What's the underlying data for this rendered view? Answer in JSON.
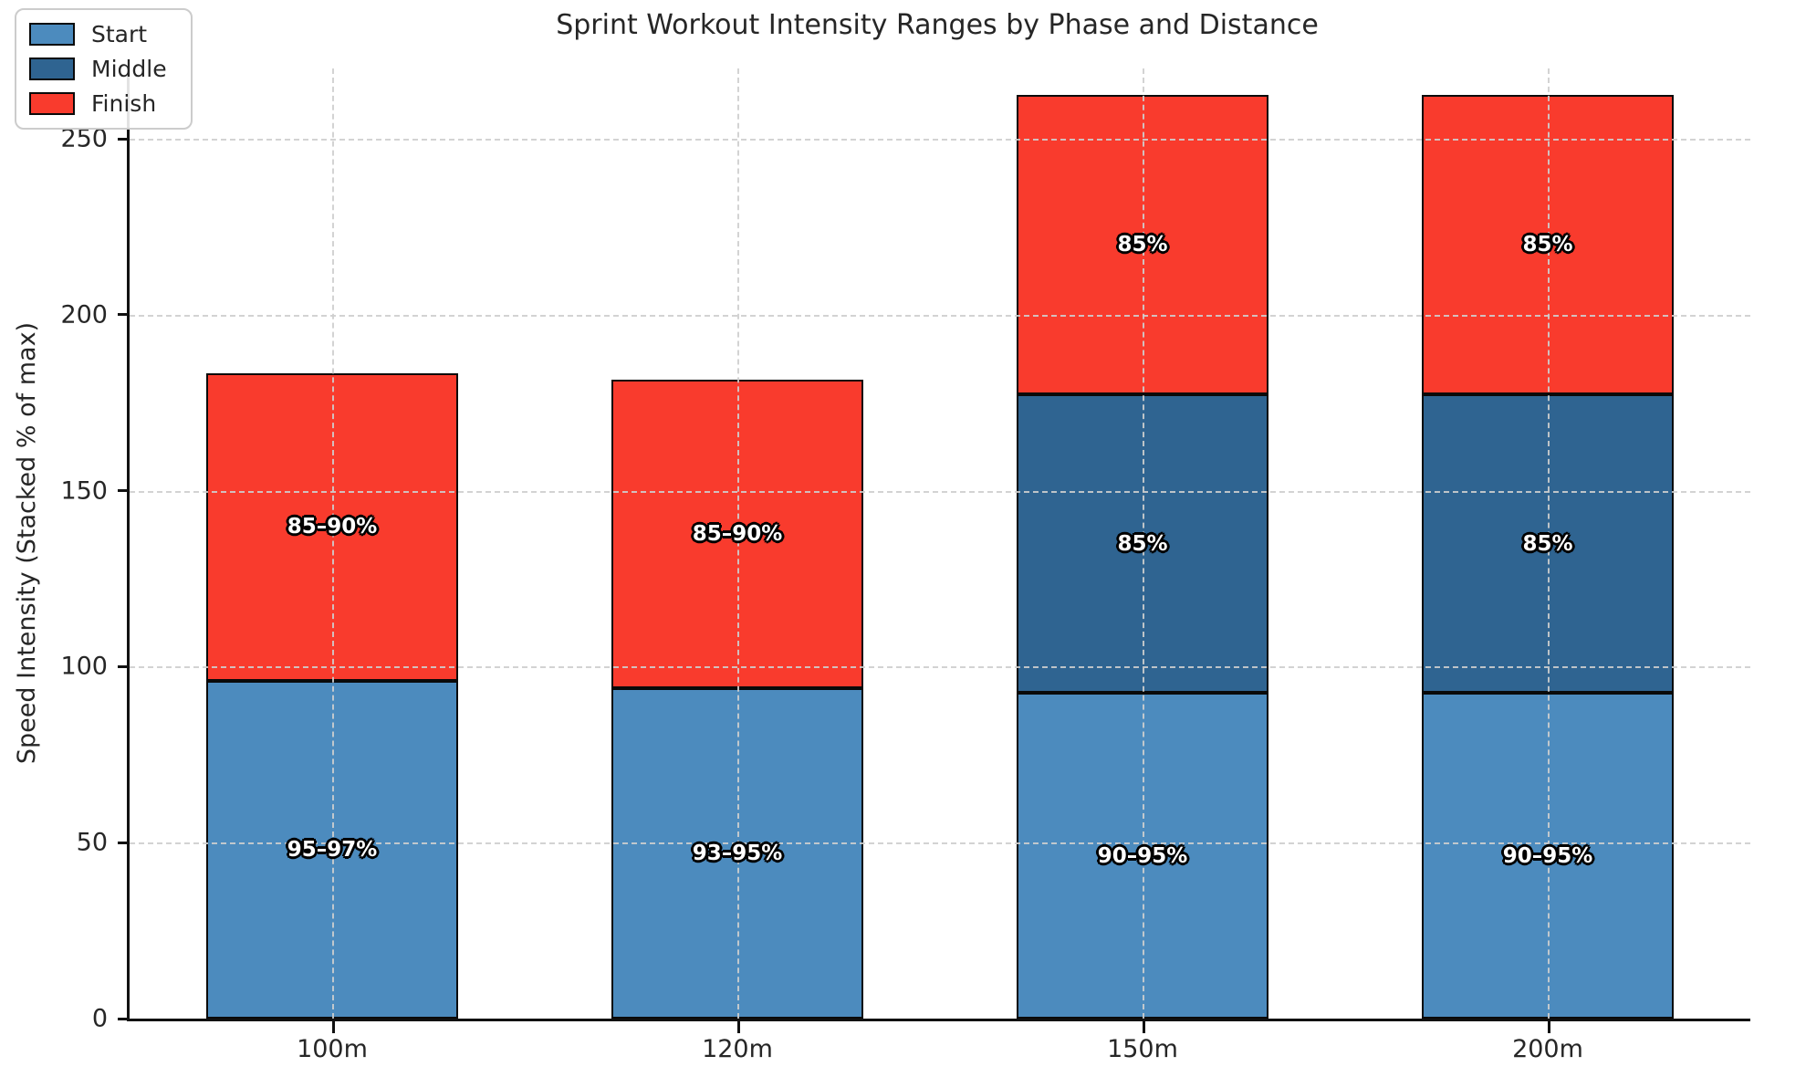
{
  "chart_data": {
    "type": "bar",
    "variant": "stacked",
    "title": "Sprint Workout Intensity Ranges by Phase and Distance",
    "xlabel": "",
    "ylabel": "Speed Intensity (Stacked % of max)",
    "categories": [
      "100m",
      "120m",
      "150m",
      "200m"
    ],
    "yticks": [
      0,
      50,
      100,
      150,
      200,
      250
    ],
    "ylim": [
      0,
      270
    ],
    "grid": "both-dashed-over-bars",
    "legend_position": "upper-left",
    "series": [
      {
        "name": "Start",
        "color": "#4c8bbe",
        "values": [
          96,
          94,
          92.5,
          92.5
        ],
        "labels": [
          "95–97%",
          "93–95%",
          "90–95%",
          "90–95%"
        ]
      },
      {
        "name": "Middle",
        "color": "#2f6491",
        "values": [
          0,
          0,
          85,
          85
        ],
        "labels": [
          "",
          "",
          "85%",
          "85%"
        ]
      },
      {
        "name": "Finish",
        "color": "#f93b2d",
        "values": [
          87.5,
          87.5,
          85,
          85
        ],
        "labels": [
          "85–90%",
          "85–90%",
          "85%",
          "85%"
        ]
      }
    ],
    "bar_totals": [
      183.5,
      181.5,
      262.5,
      262.5
    ],
    "colors": {
      "bar_edge": "#0a0a0a",
      "grid": "#cecece",
      "axis": "#111111",
      "text": "#262626",
      "segment_label_fill": "#ffffff",
      "segment_label_outline": "#000000"
    }
  }
}
